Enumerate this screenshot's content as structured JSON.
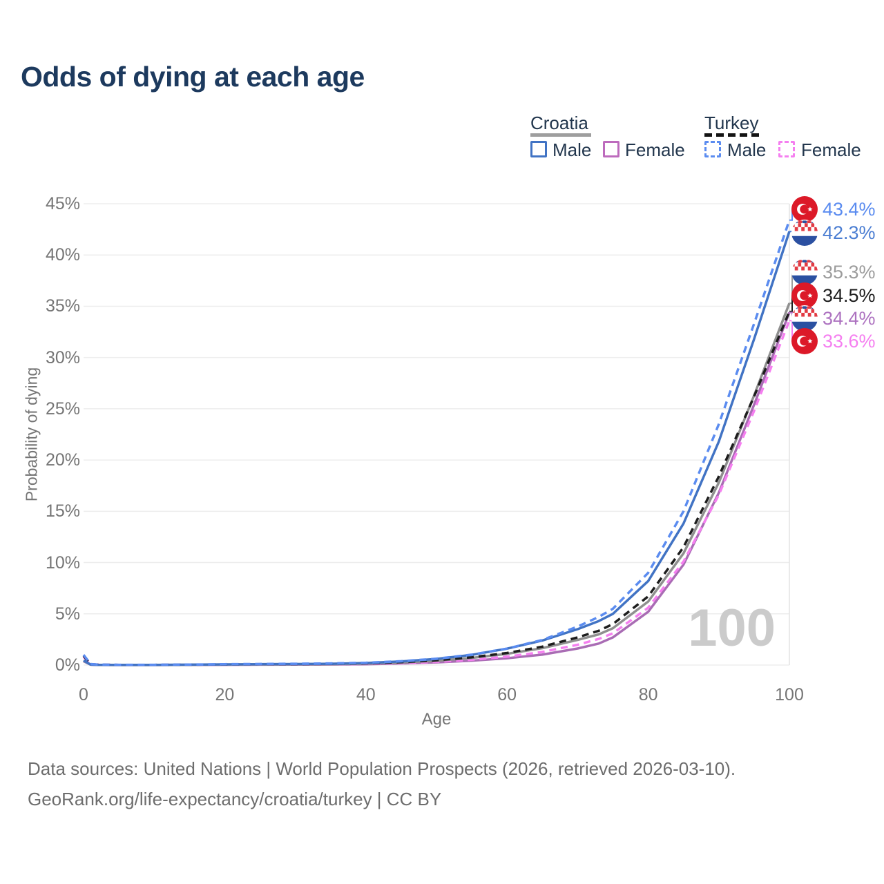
{
  "title": "Odds of dying at each age",
  "watermark": "100",
  "legend": {
    "croatia": {
      "name": "Croatia",
      "male_label": "Male",
      "female_label": "Female",
      "header_line_color": "#9e9e9e",
      "male_color": "#4173c4",
      "female_color": "#bd6bbd",
      "line_style": "solid"
    },
    "turkey": {
      "name": "Turkey",
      "male_label": "Male",
      "female_label": "Female",
      "header_line_color": "#141414",
      "male_color": "#5b8cf0",
      "female_color": "#f57ff0",
      "line_style": "dashed"
    }
  },
  "chart_data": {
    "type": "line",
    "title": "Odds of dying at each age",
    "xlabel": "Age",
    "ylabel": "Probability of dying",
    "xlim": [
      0,
      100
    ],
    "ylim": [
      0,
      45
    ],
    "x_ticks": [
      0,
      20,
      40,
      60,
      80,
      100
    ],
    "y_ticks_percent": [
      0,
      5,
      10,
      15,
      20,
      25,
      30,
      35,
      40,
      45
    ],
    "grid": "horizontal",
    "legend_position": "top-right",
    "x_ages": [
      0,
      1,
      2,
      5,
      10,
      15,
      20,
      25,
      30,
      35,
      40,
      45,
      50,
      55,
      60,
      65,
      70,
      73,
      75,
      80,
      85,
      90,
      95,
      100
    ],
    "series": [
      {
        "id": "croatia_female",
        "country": "Croatia",
        "sex": "Female",
        "color": "#a96cb4",
        "dashed": false,
        "values_percent": [
          0.38,
          0.04,
          0.02,
          0.01,
          0.01,
          0.02,
          0.03,
          0.04,
          0.05,
          0.06,
          0.09,
          0.16,
          0.26,
          0.43,
          0.67,
          1.02,
          1.62,
          2.1,
          2.7,
          5.2,
          9.8,
          16.8,
          25.4,
          34.4
        ],
        "end_value_percent": 34.4
      },
      {
        "id": "turkey_female",
        "country": "Turkey",
        "sex": "Female",
        "color": "#f57ff0",
        "dashed": true,
        "values_percent": [
          0.8,
          0.08,
          0.04,
          0.02,
          0.02,
          0.03,
          0.04,
          0.05,
          0.06,
          0.08,
          0.12,
          0.19,
          0.31,
          0.52,
          0.82,
          1.28,
          1.98,
          2.55,
          3.1,
          5.6,
          10.1,
          16.6,
          24.8,
          33.6
        ],
        "end_value_percent": 33.6
      },
      {
        "id": "croatia_total",
        "country": "Croatia",
        "sex": "Both",
        "color": "#8f8f8f",
        "dashed": false,
        "values_percent": [
          0.42,
          0.04,
          0.02,
          0.01,
          0.01,
          0.03,
          0.05,
          0.06,
          0.07,
          0.09,
          0.14,
          0.25,
          0.42,
          0.7,
          1.1,
          1.65,
          2.45,
          3.0,
          3.6,
          6.2,
          10.9,
          17.8,
          26.3,
          35.3
        ],
        "end_value_percent": 35.3
      },
      {
        "id": "turkey_total",
        "country": "Turkey",
        "sex": "Both",
        "color": "#1d1d1d",
        "dashed": true,
        "values_percent": [
          0.9,
          0.09,
          0.04,
          0.02,
          0.02,
          0.04,
          0.06,
          0.08,
          0.09,
          0.12,
          0.17,
          0.28,
          0.47,
          0.76,
          1.18,
          1.8,
          2.7,
          3.35,
          4.0,
          6.7,
          11.5,
          18.4,
          26.2,
          34.5
        ],
        "end_value_percent": 34.5
      },
      {
        "id": "croatia_male",
        "country": "Croatia",
        "sex": "Male",
        "color": "#4173c4",
        "dashed": false,
        "values_percent": [
          0.45,
          0.05,
          0.03,
          0.02,
          0.02,
          0.04,
          0.07,
          0.09,
          0.1,
          0.13,
          0.2,
          0.35,
          0.6,
          1.0,
          1.6,
          2.4,
          3.5,
          4.3,
          5.0,
          8.2,
          13.8,
          21.8,
          31.8,
          42.3
        ],
        "end_value_percent": 42.3
      },
      {
        "id": "turkey_male",
        "country": "Turkey",
        "sex": "Male",
        "color": "#5b8cf0",
        "dashed": true,
        "values_percent": [
          1.0,
          0.1,
          0.05,
          0.03,
          0.03,
          0.05,
          0.09,
          0.11,
          0.13,
          0.16,
          0.23,
          0.38,
          0.62,
          1.02,
          1.6,
          2.45,
          3.75,
          4.7,
          5.5,
          9.0,
          15.0,
          23.5,
          33.3,
          43.4
        ],
        "end_value_percent": 43.4
      }
    ]
  },
  "end_labels": [
    {
      "text": "43.4%",
      "flag": "turkey",
      "color": "#5b8cf0",
      "series": "turkey_male"
    },
    {
      "text": "42.3%",
      "flag": "croatia",
      "color": "#4a7dd2",
      "series": "croatia_male"
    },
    {
      "text": "35.3%",
      "flag": "croatia",
      "color": "#9c9c9c",
      "series": "croatia_total"
    },
    {
      "text": "34.5%",
      "flag": "turkey",
      "color": "#1d1d1d",
      "series": "turkey_total"
    },
    {
      "text": "34.4%",
      "flag": "croatia",
      "color": "#ad72c0",
      "series": "croatia_female"
    },
    {
      "text": "33.6%",
      "flag": "turkey",
      "color": "#f57ff0",
      "series": "turkey_female"
    }
  ],
  "footer": {
    "line1": "Data sources: United Nations | World Population Prospects (2026, retrieved 2026-03-10).",
    "line2": "GeoRank.org/life-expectancy/croatia/turkey | CC BY"
  }
}
